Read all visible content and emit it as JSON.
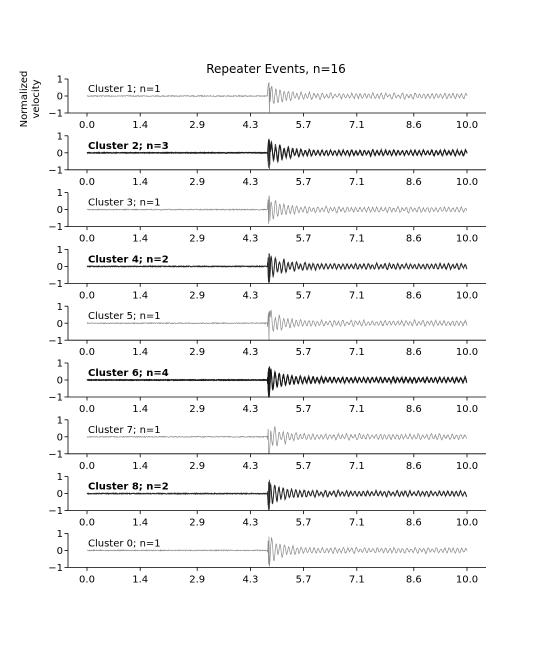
{
  "chart_data": {
    "type": "line",
    "title": "Repeater Events, n=16",
    "ylabel_lines": [
      "Normalized",
      "velocity"
    ],
    "xlim": [
      -0.5,
      10.5
    ],
    "ylim": [
      -1,
      1
    ],
    "x_ticks": [
      "0.0",
      "1.4",
      "2.9",
      "4.3",
      "5.7",
      "7.1",
      "8.6",
      "10.0"
    ],
    "x_tick_values": [
      0.0,
      1.4,
      2.9,
      4.3,
      5.7,
      7.1,
      8.6,
      10.0
    ],
    "y_ticks": [
      "−1",
      "0",
      "1"
    ],
    "y_tick_values": [
      -1,
      0,
      1
    ],
    "grid": false,
    "panels": [
      {
        "label": "Cluster 1; n=1",
        "cluster": 1,
        "n": 1
      },
      {
        "label": "Cluster 2; n=3",
        "cluster": 2,
        "n": 3
      },
      {
        "label": "Cluster 3; n=1",
        "cluster": 3,
        "n": 1
      },
      {
        "label": "Cluster 4; n=2",
        "cluster": 4,
        "n": 2
      },
      {
        "label": "Cluster 5; n=1",
        "cluster": 5,
        "n": 1
      },
      {
        "label": "Cluster 6; n=4",
        "cluster": 6,
        "n": 4
      },
      {
        "label": "Cluster 7; n=1",
        "cluster": 7,
        "n": 1
      },
      {
        "label": "Cluster 8; n=2",
        "cluster": 8,
        "n": 2
      },
      {
        "label": "Cluster 0; n=1",
        "cluster": 0,
        "n": 1
      }
    ],
    "signal": {
      "x_start": 0.0,
      "x_end": 10.0,
      "onset_x": 4.75,
      "peak_amplitude": 1.0,
      "noise_amplitude": 0.03
    },
    "colors": {
      "single": "#8a8a8a",
      "multi": "#111111"
    }
  }
}
